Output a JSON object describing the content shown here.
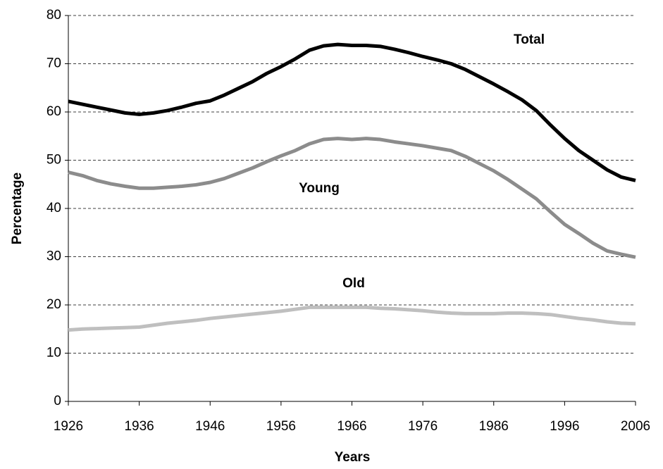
{
  "chart_data": {
    "type": "line",
    "x_label": "Years",
    "y_label": "Percentage",
    "x": [
      1926,
      1928,
      1930,
      1932,
      1934,
      1936,
      1938,
      1940,
      1942,
      1944,
      1946,
      1948,
      1950,
      1952,
      1954,
      1956,
      1958,
      1960,
      1962,
      1964,
      1966,
      1968,
      1970,
      1972,
      1974,
      1976,
      1978,
      1980,
      1982,
      1984,
      1986,
      1988,
      1990,
      1992,
      1994,
      1996,
      1998,
      2000,
      2002,
      2004,
      2006
    ],
    "series": [
      {
        "name": "Total",
        "color": "#000000",
        "values": [
          62.2,
          61.6,
          61.0,
          60.4,
          59.8,
          59.5,
          59.8,
          60.3,
          61.0,
          61.8,
          62.3,
          63.5,
          64.9,
          66.3,
          68.0,
          69.4,
          71.0,
          72.8,
          73.7,
          74.0,
          73.8,
          73.8,
          73.6,
          73.0,
          72.3,
          71.5,
          70.8,
          70.0,
          68.8,
          67.3,
          65.8,
          64.2,
          62.5,
          60.3,
          57.3,
          54.5,
          52.0,
          50.0,
          48.0,
          46.5,
          45.8
        ]
      },
      {
        "name": "Young",
        "color": "#8c8c8c",
        "values": [
          47.5,
          46.8,
          45.8,
          45.1,
          44.6,
          44.2,
          44.2,
          44.4,
          44.6,
          44.9,
          45.4,
          46.2,
          47.3,
          48.4,
          49.7,
          50.9,
          52.0,
          53.4,
          54.3,
          54.5,
          54.3,
          54.5,
          54.3,
          53.8,
          53.4,
          53.0,
          52.5,
          52.0,
          50.8,
          49.3,
          47.8,
          46.0,
          44.0,
          42.0,
          39.3,
          36.7,
          34.8,
          32.8,
          31.2,
          30.5,
          29.9
        ]
      },
      {
        "name": "Old",
        "color": "#bfbfbf",
        "values": [
          14.8,
          15.0,
          15.1,
          15.2,
          15.3,
          15.4,
          15.8,
          16.2,
          16.5,
          16.8,
          17.2,
          17.5,
          17.8,
          18.1,
          18.4,
          18.7,
          19.1,
          19.5,
          19.5,
          19.5,
          19.5,
          19.5,
          19.3,
          19.2,
          19.0,
          18.8,
          18.5,
          18.3,
          18.2,
          18.2,
          18.2,
          18.3,
          18.3,
          18.2,
          18.0,
          17.6,
          17.2,
          16.9,
          16.5,
          16.2,
          16.1
        ]
      }
    ],
    "xlim": [
      1926,
      2006
    ],
    "xticks": [
      1926,
      1936,
      1946,
      1956,
      1966,
      1976,
      1986,
      1996,
      2006
    ],
    "ylim": [
      0,
      80
    ],
    "yticks": [
      0,
      10,
      20,
      30,
      40,
      50,
      60,
      70,
      80
    ],
    "grid": true
  }
}
